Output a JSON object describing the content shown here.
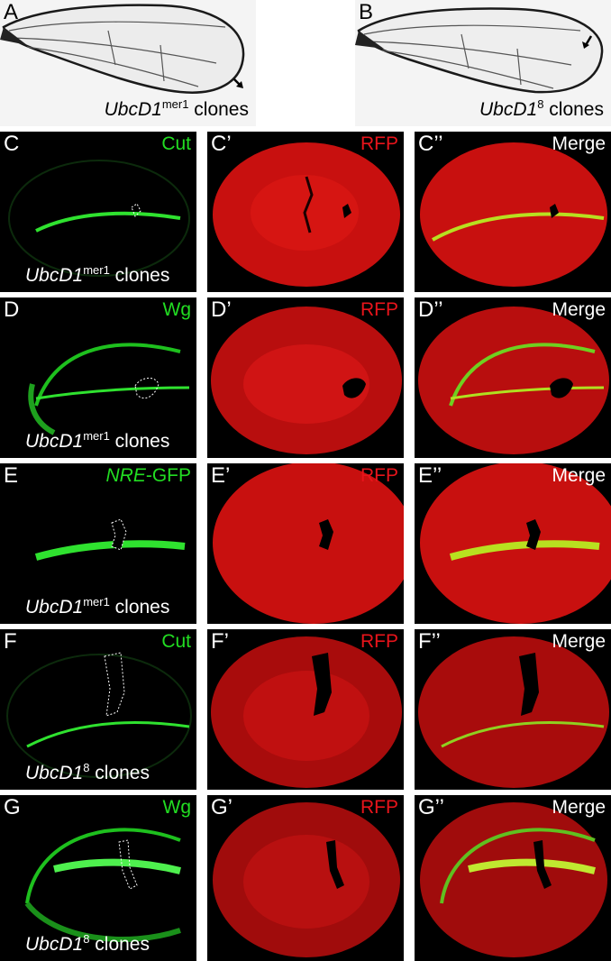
{
  "top_panels": [
    {
      "letter": "A",
      "gene": "UbcD1",
      "allele": "mer1",
      "suffix": " clones"
    },
    {
      "letter": "B",
      "gene": "UbcD1",
      "allele": "8",
      "suffix": " clones"
    }
  ],
  "rows": [
    {
      "id": "C",
      "allele": "mer1",
      "panels": [
        {
          "letter": "C",
          "channel": "Cut"
        },
        {
          "letter": "C’",
          "channel": "RFP"
        },
        {
          "letter": "C’’",
          "channel": "Merge"
        }
      ]
    },
    {
      "id": "D",
      "allele": "mer1",
      "panels": [
        {
          "letter": "D",
          "channel": "Wg"
        },
        {
          "letter": "D’",
          "channel": "RFP"
        },
        {
          "letter": "D’’",
          "channel": "Merge"
        }
      ]
    },
    {
      "id": "E",
      "allele": "mer1",
      "panels": [
        {
          "letter": "E",
          "channel_italic": "NRE",
          "channel": "-GFP"
        },
        {
          "letter": "E’",
          "channel": "RFP"
        },
        {
          "letter": "E’’",
          "channel": "Merge"
        }
      ]
    },
    {
      "id": "F",
      "allele": "8",
      "panels": [
        {
          "letter": "F",
          "channel": "Cut"
        },
        {
          "letter": "F’",
          "channel": "RFP"
        },
        {
          "letter": "F’’",
          "channel": "Merge"
        }
      ]
    },
    {
      "id": "G",
      "allele": "8",
      "panels": [
        {
          "letter": "G",
          "channel": "Wg"
        },
        {
          "letter": "G’",
          "channel": "RFP"
        },
        {
          "letter": "G’’",
          "channel": "Merge"
        }
      ]
    }
  ],
  "clone_gene": "UbcD1",
  "clone_suffix": " clones",
  "colors": {
    "green": "#22dd22",
    "red": "#e8141b",
    "background": "#000000"
  }
}
